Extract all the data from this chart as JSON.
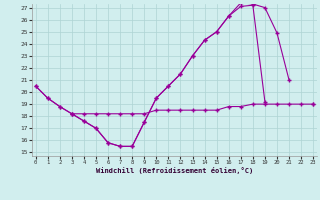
{
  "xlabel": "Windchill (Refroidissement éolien,°C)",
  "x_hours": [
    0,
    1,
    2,
    3,
    4,
    5,
    6,
    7,
    8,
    9,
    10,
    11,
    12,
    13,
    14,
    15,
    16,
    17,
    18,
    19,
    20,
    21,
    22,
    23
  ],
  "series_a": [
    20.5,
    19.5,
    18.8,
    18.2,
    17.6,
    17.0,
    15.8,
    15.5,
    15.5,
    17.5,
    19.5,
    20.5,
    21.5,
    23.0,
    24.3,
    25.0,
    26.3,
    27.4,
    27.3,
    27.0,
    24.9,
    21.0,
    null,
    19.0
  ],
  "series_b": [
    20.5,
    19.5,
    18.8,
    18.2,
    17.6,
    17.0,
    15.8,
    15.5,
    15.5,
    17.5,
    19.5,
    20.5,
    21.5,
    23.0,
    24.3,
    25.0,
    26.3,
    27.1,
    27.2,
    19.2,
    null,
    null,
    null,
    null
  ],
  "series_c": [
    null,
    null,
    null,
    18.2,
    18.2,
    18.2,
    18.2,
    18.2,
    18.2,
    18.2,
    18.5,
    18.5,
    18.5,
    18.5,
    18.5,
    18.5,
    18.8,
    18.8,
    19.0,
    19.0,
    19.0,
    19.0,
    19.0,
    19.0
  ],
  "ylim": [
    15,
    27
  ],
  "xlim": [
    0,
    23
  ],
  "yticks": [
    15,
    16,
    17,
    18,
    19,
    20,
    21,
    22,
    23,
    24,
    25,
    26,
    27
  ],
  "xticks": [
    0,
    1,
    2,
    3,
    4,
    5,
    6,
    7,
    8,
    9,
    10,
    11,
    12,
    13,
    14,
    15,
    16,
    17,
    18,
    19,
    20,
    21,
    22,
    23
  ],
  "bg_color": "#d1eeee",
  "grid_color": "#aed4d4",
  "line_color": "#990099",
  "marker": "+",
  "markersize": 3,
  "linewidth": 0.8
}
